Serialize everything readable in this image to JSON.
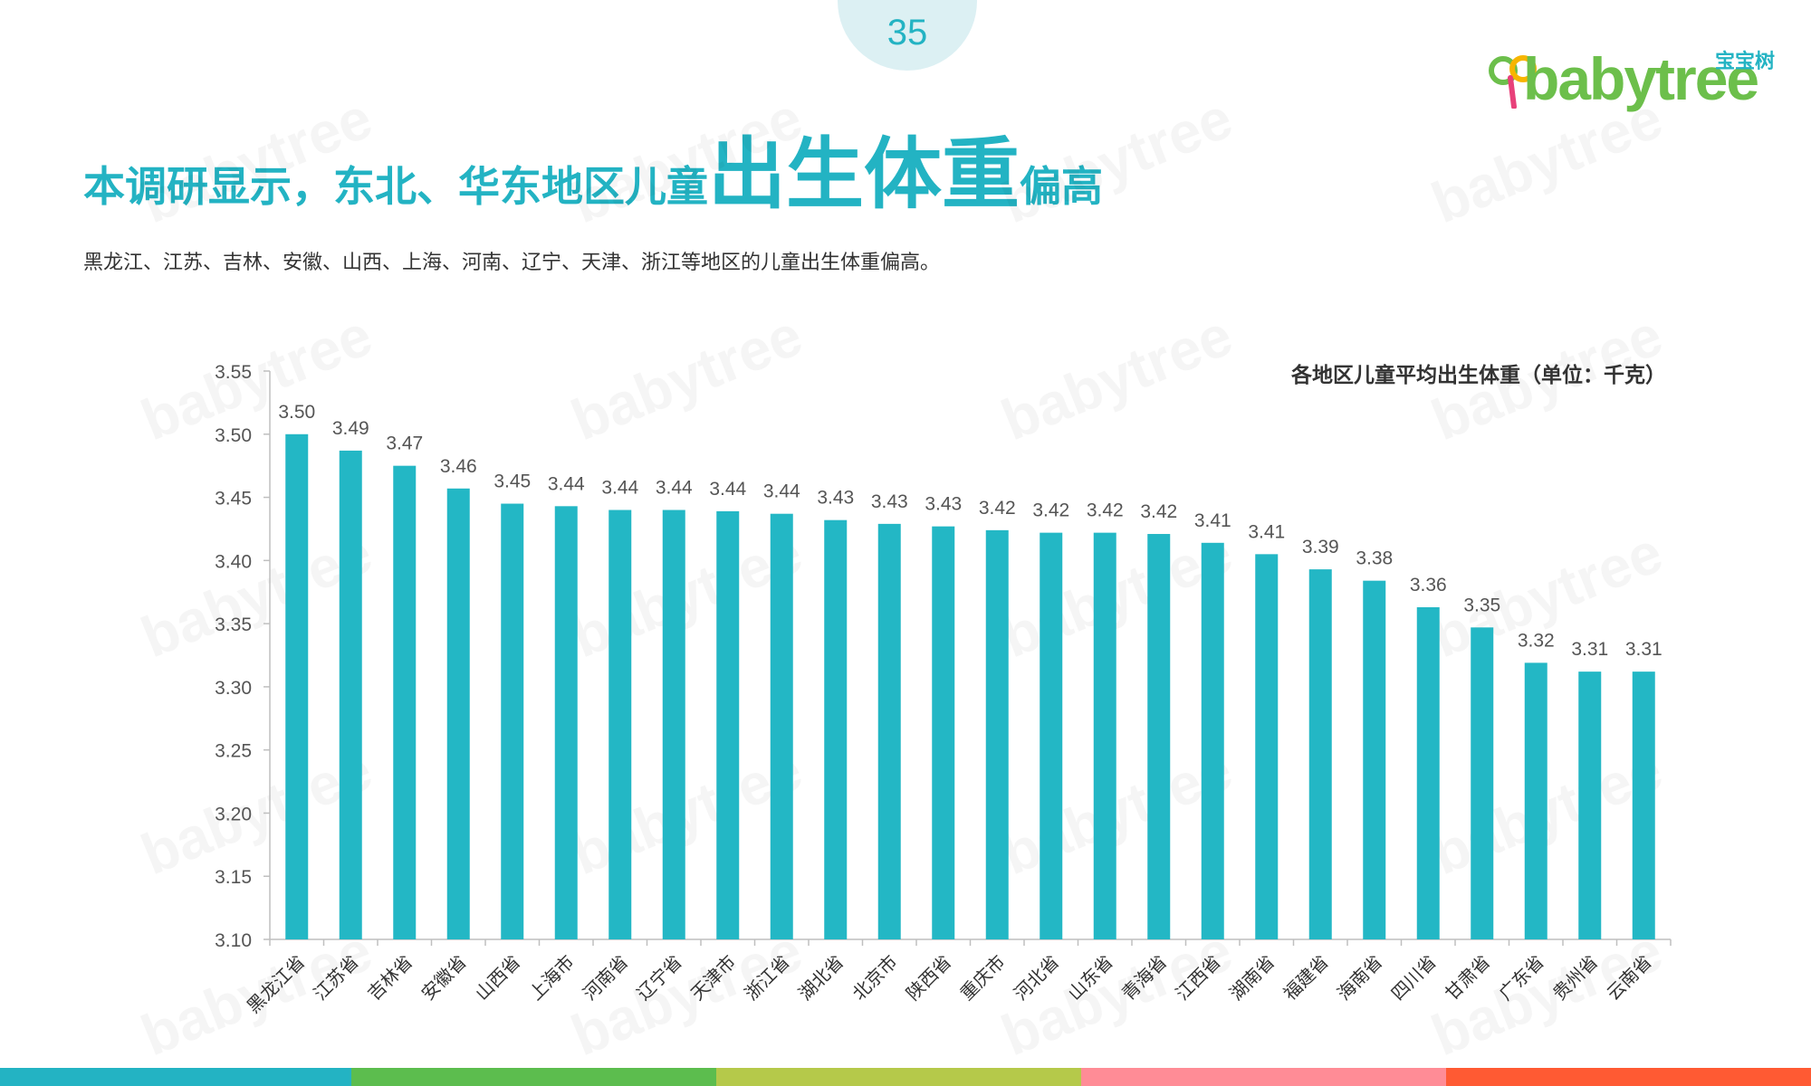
{
  "page_number": "35",
  "logo": {
    "cn": "宝宝树",
    "en": "babytree"
  },
  "title": {
    "part1": "本调研显示，东北、华东地区儿童",
    "part2": "出生体重",
    "part3": "偏高"
  },
  "subtitle": "黑龙江、江苏、吉林、安徽、山西、上海、河南、辽宁、天津、浙江等地区的儿童出生体重偏高。",
  "watermark_text": "babytree",
  "colors": {
    "accent": "#23b3c3",
    "bar": "#23b7c5",
    "footer": [
      "#23b3c3",
      "#5cbd4e",
      "#b5c94a",
      "#ff8c96",
      "#ff5a33"
    ]
  },
  "chart_data": {
    "type": "bar",
    "title": "各地区儿童平均出生体重（单位：千克）",
    "xlabel": "",
    "ylabel": "",
    "ylim": [
      3.1,
      3.55
    ],
    "yticks": [
      "3.10",
      "3.15",
      "3.20",
      "3.25",
      "3.30",
      "3.35",
      "3.40",
      "3.45",
      "3.50",
      "3.55"
    ],
    "grid": false,
    "categories": [
      "黑龙江省",
      "江苏省",
      "吉林省",
      "安徽省",
      "山西省",
      "上海市",
      "河南省",
      "辽宁省",
      "天津市",
      "浙江省",
      "湖北省",
      "北京市",
      "陕西省",
      "重庆市",
      "河北省",
      "山东省",
      "青海省",
      "江西省",
      "湖南省",
      "福建省",
      "海南省",
      "四川省",
      "甘肃省",
      "广东省",
      "贵州省",
      "云南省"
    ],
    "values": [
      3.5,
      3.487,
      3.475,
      3.457,
      3.445,
      3.443,
      3.44,
      3.44,
      3.439,
      3.437,
      3.432,
      3.429,
      3.427,
      3.424,
      3.422,
      3.422,
      3.421,
      3.414,
      3.405,
      3.393,
      3.384,
      3.363,
      3.347,
      3.319,
      3.312,
      3.312
    ],
    "labels": [
      "3.50",
      "3.49",
      "3.47",
      "3.46",
      "3.45",
      "3.44",
      "3.44",
      "3.44",
      "3.44",
      "3.44",
      "3.43",
      "3.43",
      "3.43",
      "3.42",
      "3.42",
      "3.42",
      "3.42",
      "3.41",
      "3.41",
      "3.39",
      "3.38",
      "3.36",
      "3.35",
      "3.32",
      "3.31",
      "3.31"
    ]
  }
}
